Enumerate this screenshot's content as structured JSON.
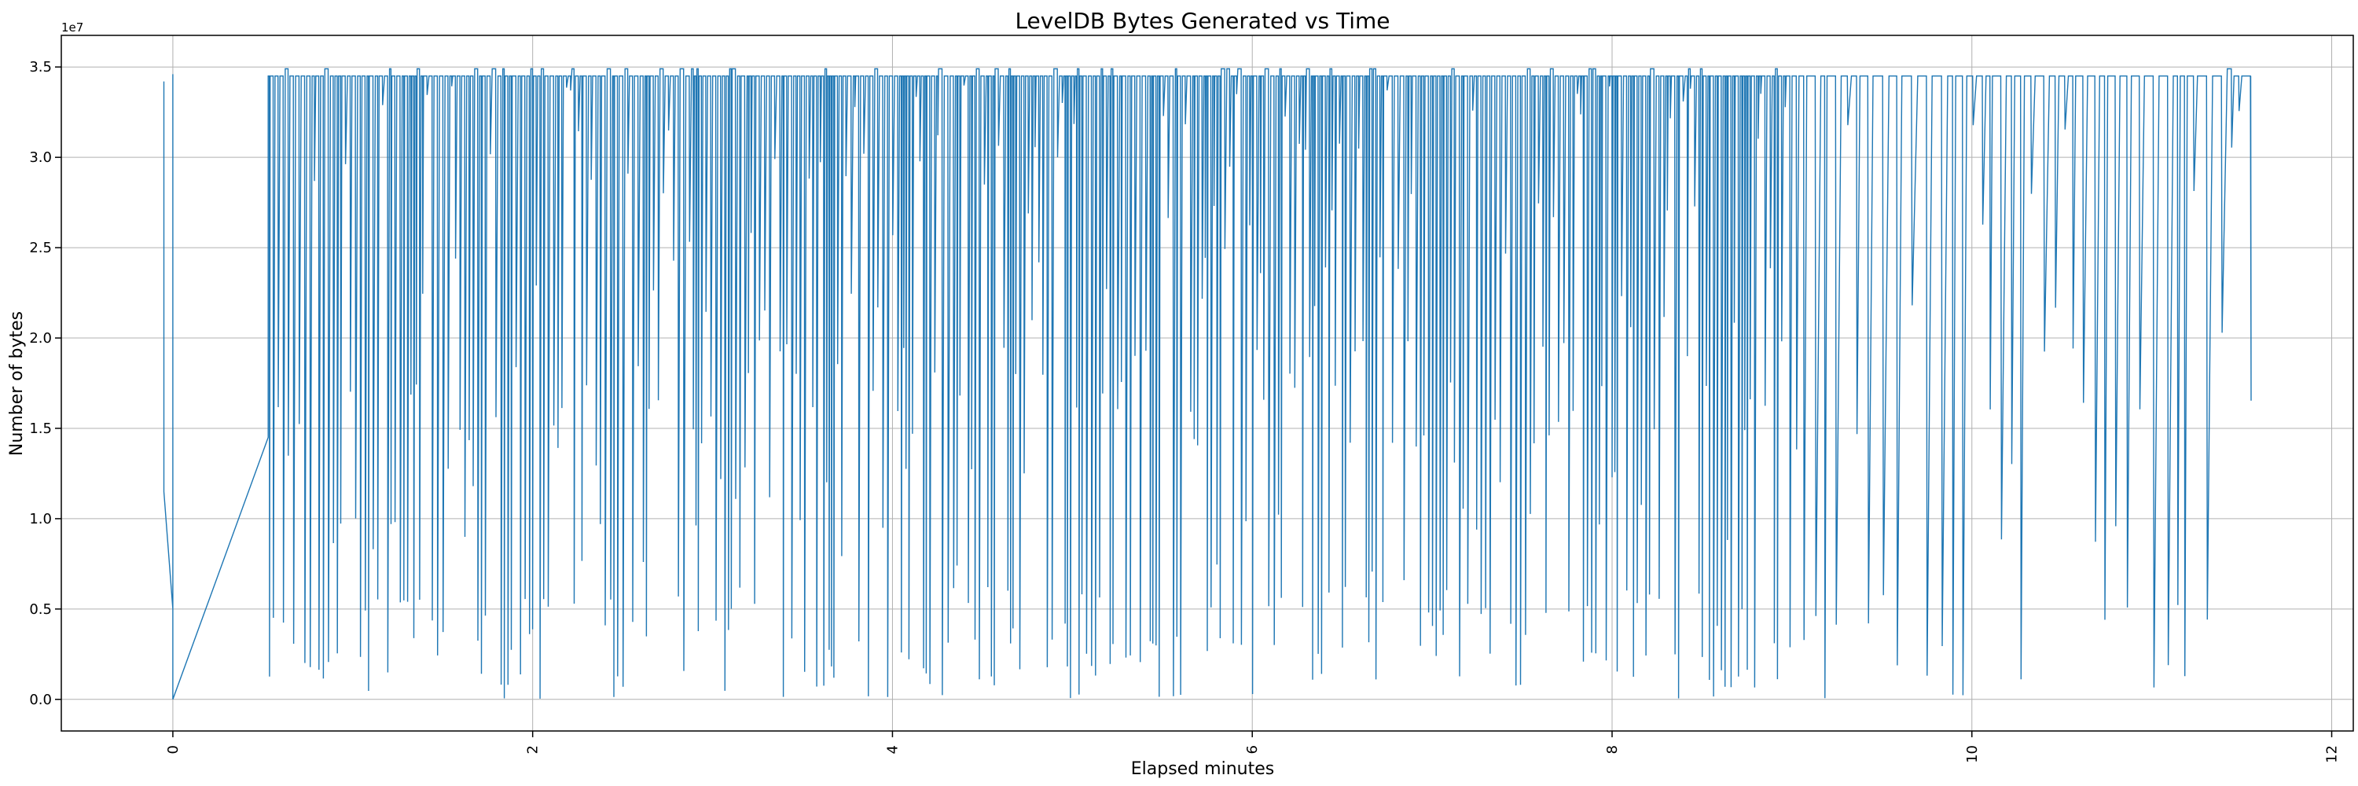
{
  "chart_data": {
    "type": "line",
    "title": "LevelDB Bytes Generated vs Time",
    "xlabel": "Elapsed minutes",
    "ylabel": "Number of bytes",
    "y_offset_text": "1e7",
    "xlim": [
      -0.62,
      12.12
    ],
    "ylim": [
      -0.175,
      3.675
    ],
    "y_scale_note": "y values in units of 1e7 bytes",
    "grid": true,
    "line_color": "#1f77b4",
    "x_ticks": [
      0,
      2,
      4,
      6,
      8,
      10,
      12
    ],
    "x_tick_labels": [
      "0",
      "2",
      "4",
      "6",
      "8",
      "10",
      "12"
    ],
    "y_ticks": [
      0.0,
      0.5,
      1.0,
      1.5,
      2.0,
      2.5,
      3.0,
      3.5
    ],
    "y_tick_labels": [
      "0.0",
      "0.5",
      "1.0",
      "1.5",
      "2.0",
      "2.5",
      "3.0",
      "3.5"
    ],
    "series": [
      {
        "name": "bytes",
        "start_points": [
          [
            -0.05,
            3.42
          ],
          [
            -0.05,
            1.15
          ],
          [
            0.0,
            0.5
          ],
          [
            0.0,
            3.46
          ],
          [
            0.0,
            0.0
          ],
          [
            0.53,
            1.45
          ]
        ],
        "sawtooth": {
          "x_start": 0.53,
          "x_end": 11.55,
          "plateau": 3.45,
          "peak": 3.49,
          "dense_until": 9.0,
          "dense_spacing": 0.022,
          "sparse_spacing": 0.06,
          "seed": 7
        }
      }
    ]
  }
}
